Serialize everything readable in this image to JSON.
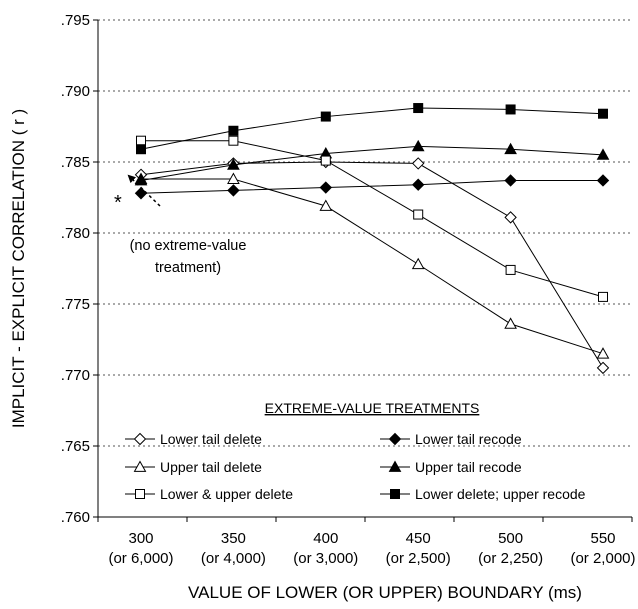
{
  "chart_data": {
    "type": "line",
    "ylabel": "IMPLICIT - EXPLICIT  CORRELATION  ( r )",
    "xlabel": "VALUE OF LOWER (OR UPPER) BOUNDARY (ms)",
    "ylim": [
      0.76,
      0.795
    ],
    "yticks": [
      ".795",
      ".790",
      ".785",
      ".780",
      ".775",
      ".770",
      ".765",
      ".760"
    ],
    "ytick_values": [
      0.795,
      0.79,
      0.785,
      0.78,
      0.775,
      0.77,
      0.765,
      0.76
    ],
    "grid": "horizontal dotted",
    "categories": [
      {
        "line1": "300",
        "line2": "(or 6,000)"
      },
      {
        "line1": "350",
        "line2": "(or 4,000)"
      },
      {
        "line1": "400",
        "line2": "(or 3,000)"
      },
      {
        "line1": "450",
        "line2": "(or 2,500)"
      },
      {
        "line1": "500",
        "line2": "(or 2,250)"
      },
      {
        "line1": "550",
        "line2": "(or 2,000)"
      }
    ],
    "legend_title": "EXTREME-VALUE TREATMENTS",
    "legend_placement": "bottom, inside plot",
    "series": [
      {
        "name": "Lower tail delete",
        "marker": "diamond-open",
        "values": [
          0.7841,
          0.7849,
          0.785,
          0.7849,
          0.7811,
          0.7705
        ]
      },
      {
        "name": "Lower tail recode",
        "marker": "diamond-filled",
        "values": [
          0.7828,
          0.783,
          0.7832,
          0.7834,
          0.7837,
          0.7837
        ]
      },
      {
        "name": "Upper tail delete",
        "marker": "triangle-open",
        "values": [
          0.7838,
          0.7838,
          0.7819,
          0.7778,
          0.7736,
          0.7715
        ]
      },
      {
        "name": "Upper tail recode",
        "marker": "triangle-filled",
        "values": [
          0.7837,
          0.7848,
          0.7856,
          0.7861,
          0.7859,
          0.7855
        ]
      },
      {
        "name": "Lower & upper delete",
        "marker": "square-open",
        "values": [
          0.7865,
          0.7865,
          0.7851,
          0.7813,
          0.7774,
          0.7755
        ]
      },
      {
        "name": "Lower delete; upper recode",
        "marker": "square-filled",
        "values": [
          0.7859,
          0.7872,
          0.7882,
          0.7888,
          0.7887,
          0.7884
        ]
      }
    ],
    "annotation": {
      "marker_text": "*",
      "value": 0.7828,
      "lines": [
        "(no extreme-value",
        "treatment)"
      ]
    }
  }
}
